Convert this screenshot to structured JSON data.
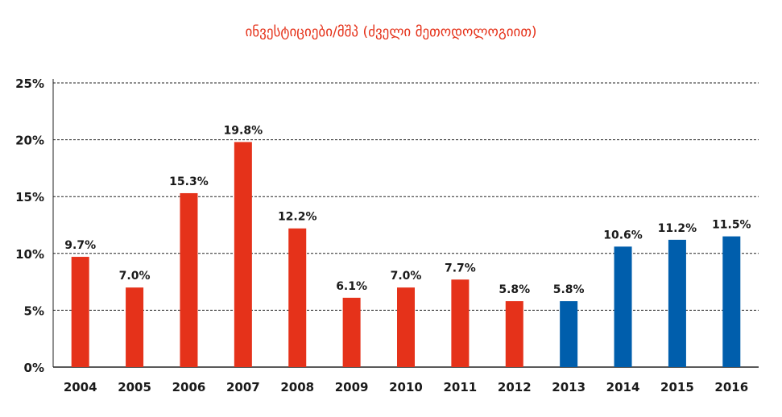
{
  "chart_data": {
    "type": "bar",
    "title": "ინვესტიციები/მშპ (ძველი მეთოდოლოგიით)",
    "xlabel": "",
    "ylabel": "",
    "categories": [
      "2004",
      "2005",
      "2006",
      "2007",
      "2008",
      "2009",
      "2010",
      "2011",
      "2012",
      "2013",
      "2014",
      "2015",
      "2016"
    ],
    "values": [
      9.7,
      7.0,
      15.3,
      19.8,
      12.2,
      6.1,
      7.0,
      7.7,
      5.8,
      5.8,
      10.6,
      11.2,
      11.5
    ],
    "labels": [
      "9.7%",
      "7.0%",
      "15.3%",
      "19.8%",
      "12.2%",
      "6.1%",
      "7.0%",
      "7.7%",
      "5.8%",
      "5.8%",
      "10.6%",
      "11.2%",
      "11.5%"
    ],
    "bar_colors": [
      "#e5321a",
      "#e5321a",
      "#e5321a",
      "#e5321a",
      "#e5321a",
      "#e5321a",
      "#e5321a",
      "#e5321a",
      "#e5321a",
      "#005eac",
      "#005eac",
      "#005eac",
      "#005eac"
    ],
    "ylim": [
      0,
      25
    ],
    "yticks": [
      0,
      5,
      10,
      15,
      20,
      25
    ],
    "ytick_labels": [
      "0%",
      "5%",
      "10%",
      "15%",
      "20%",
      "25%"
    ],
    "grid": true
  }
}
